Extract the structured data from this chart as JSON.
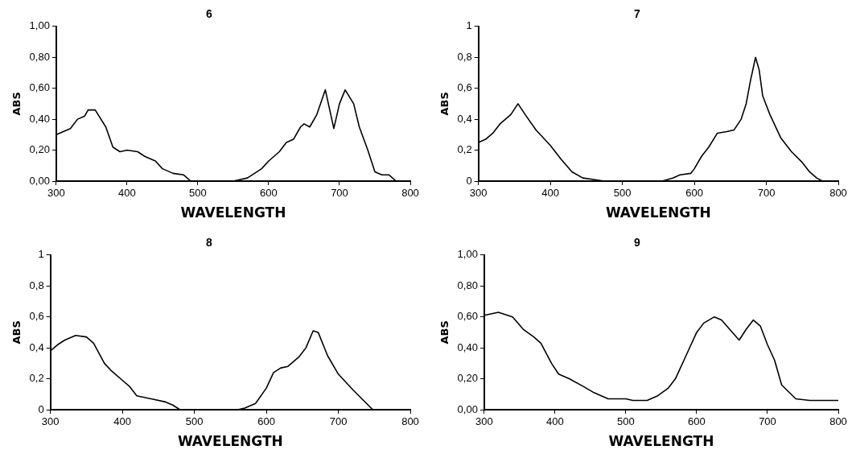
{
  "chart_data": [
    {
      "type": "line",
      "title": "6",
      "xlabel": "WAVELENGTH",
      "ylabel": "ABS",
      "grid": false,
      "legend": false,
      "marker": "none",
      "x": [
        300,
        320,
        330,
        340,
        345,
        355,
        370,
        380,
        390,
        400,
        415,
        425,
        440,
        450,
        465,
        480,
        490,
        500,
        550,
        570,
        590,
        600,
        615,
        625,
        635,
        645,
        650,
        658,
        668,
        680,
        692,
        700,
        708,
        720,
        728,
        740,
        750,
        760,
        770,
        780
      ],
      "series": [
        {
          "color": "#000000",
          "values": [
            0.3,
            0.34,
            0.4,
            0.42,
            0.46,
            0.46,
            0.35,
            0.22,
            0.19,
            0.2,
            0.19,
            0.16,
            0.13,
            0.08,
            0.05,
            0.04,
            0.0,
            0.0,
            0.0,
            0.02,
            0.08,
            0.13,
            0.19,
            0.25,
            0.27,
            0.35,
            0.37,
            0.35,
            0.43,
            0.59,
            0.34,
            0.5,
            0.59,
            0.5,
            0.35,
            0.2,
            0.06,
            0.04,
            0.04,
            0.0
          ]
        }
      ],
      "xlim": [
        300,
        800
      ],
      "ylim": [
        0,
        1
      ],
      "xticks": [
        300,
        400,
        500,
        600,
        700,
        800
      ],
      "yticks": [
        {
          "value": 0,
          "label": "0,00"
        },
        {
          "value": 0.2,
          "label": "0,20"
        },
        {
          "value": 0.4,
          "label": "0,40"
        },
        {
          "value": 0.6,
          "label": "0,60"
        },
        {
          "value": 0.8,
          "label": "0,80"
        },
        {
          "value": 1,
          "label": "1,00"
        }
      ]
    },
    {
      "type": "line",
      "title": "7",
      "xlabel": "WAVELENGTH",
      "ylabel": "ABS",
      "grid": false,
      "legend": false,
      "marker": "none",
      "x": [
        300,
        310,
        320,
        330,
        345,
        355,
        365,
        380,
        400,
        415,
        430,
        445,
        460,
        475,
        555,
        570,
        580,
        595,
        600,
        610,
        620,
        632,
        645,
        655,
        665,
        672,
        678,
        685,
        690,
        695,
        705,
        720,
        735,
        750,
        760,
        770,
        778
      ],
      "series": [
        {
          "color": "#000000",
          "values": [
            0.25,
            0.27,
            0.31,
            0.37,
            0.43,
            0.5,
            0.43,
            0.33,
            0.23,
            0.14,
            0.06,
            0.02,
            0.01,
            0.0,
            0.0,
            0.02,
            0.04,
            0.05,
            0.08,
            0.16,
            0.22,
            0.31,
            0.32,
            0.33,
            0.4,
            0.5,
            0.65,
            0.8,
            0.72,
            0.55,
            0.43,
            0.28,
            0.19,
            0.12,
            0.06,
            0.02,
            0.0
          ]
        }
      ],
      "xlim": [
        300,
        800
      ],
      "ylim": [
        0,
        1
      ],
      "xticks": [
        300,
        400,
        500,
        600,
        700,
        800
      ],
      "yticks": [
        {
          "value": 0,
          "label": "0"
        },
        {
          "value": 0.2,
          "label": "0,2"
        },
        {
          "value": 0.4,
          "label": "0,4"
        },
        {
          "value": 0.6,
          "label": "0,6"
        },
        {
          "value": 0.8,
          "label": "0,8"
        },
        {
          "value": 1,
          "label": "1"
        }
      ]
    },
    {
      "type": "line",
      "title": "8",
      "xlabel": "WAVELENGTH",
      "ylabel": "ABS",
      "grid": false,
      "legend": false,
      "marker": "none",
      "x": [
        300,
        310,
        320,
        335,
        350,
        360,
        375,
        385,
        400,
        410,
        420,
        440,
        460,
        470,
        480,
        560,
        570,
        585,
        600,
        610,
        620,
        630,
        645,
        655,
        665,
        672,
        685,
        700,
        720,
        735,
        748,
        770
      ],
      "series": [
        {
          "color": "#000000",
          "values": [
            0.38,
            0.42,
            0.45,
            0.48,
            0.47,
            0.43,
            0.3,
            0.25,
            0.19,
            0.15,
            0.09,
            0.07,
            0.05,
            0.03,
            0.0,
            0.0,
            0.01,
            0.04,
            0.14,
            0.24,
            0.27,
            0.28,
            0.34,
            0.4,
            0.51,
            0.5,
            0.35,
            0.23,
            0.13,
            0.06,
            0.0,
            0.0
          ]
        }
      ],
      "xlim": [
        300,
        800
      ],
      "ylim": [
        0,
        1
      ],
      "xticks": [
        300,
        400,
        500,
        600,
        700,
        800
      ],
      "yticks": [
        {
          "value": 0,
          "label": "0"
        },
        {
          "value": 0.2,
          "label": "0,2"
        },
        {
          "value": 0.4,
          "label": "0,4"
        },
        {
          "value": 0.6,
          "label": "0,6"
        },
        {
          "value": 0.8,
          "label": "0,8"
        },
        {
          "value": 1,
          "label": "1"
        }
      ]
    },
    {
      "type": "line",
      "title": "9",
      "xlabel": "WAVELENGTH",
      "ylabel": "ABS",
      "grid": false,
      "legend": false,
      "marker": "none",
      "x": [
        300,
        320,
        340,
        355,
        370,
        380,
        395,
        405,
        420,
        440,
        455,
        475,
        500,
        510,
        530,
        545,
        560,
        570,
        585,
        600,
        610,
        625,
        635,
        660,
        670,
        680,
        690,
        700,
        710,
        720,
        740,
        760,
        800
      ],
      "series": [
        {
          "color": "#000000",
          "values": [
            0.61,
            0.63,
            0.6,
            0.52,
            0.47,
            0.43,
            0.3,
            0.23,
            0.2,
            0.15,
            0.11,
            0.07,
            0.07,
            0.06,
            0.06,
            0.09,
            0.14,
            0.2,
            0.35,
            0.5,
            0.56,
            0.6,
            0.58,
            0.45,
            0.52,
            0.58,
            0.54,
            0.42,
            0.32,
            0.16,
            0.07,
            0.06,
            0.06
          ]
        }
      ],
      "xlim": [
        300,
        800
      ],
      "ylim": [
        0,
        1
      ],
      "xticks": [
        300,
        400,
        500,
        600,
        700,
        800
      ],
      "yticks": [
        {
          "value": 0,
          "label": "0,00"
        },
        {
          "value": 0.2,
          "label": "0,20"
        },
        {
          "value": 0.4,
          "label": "0,40"
        },
        {
          "value": 0.6,
          "label": "0,60"
        },
        {
          "value": 0.8,
          "label": "0,80"
        },
        {
          "value": 1,
          "label": "1,00"
        }
      ]
    }
  ]
}
